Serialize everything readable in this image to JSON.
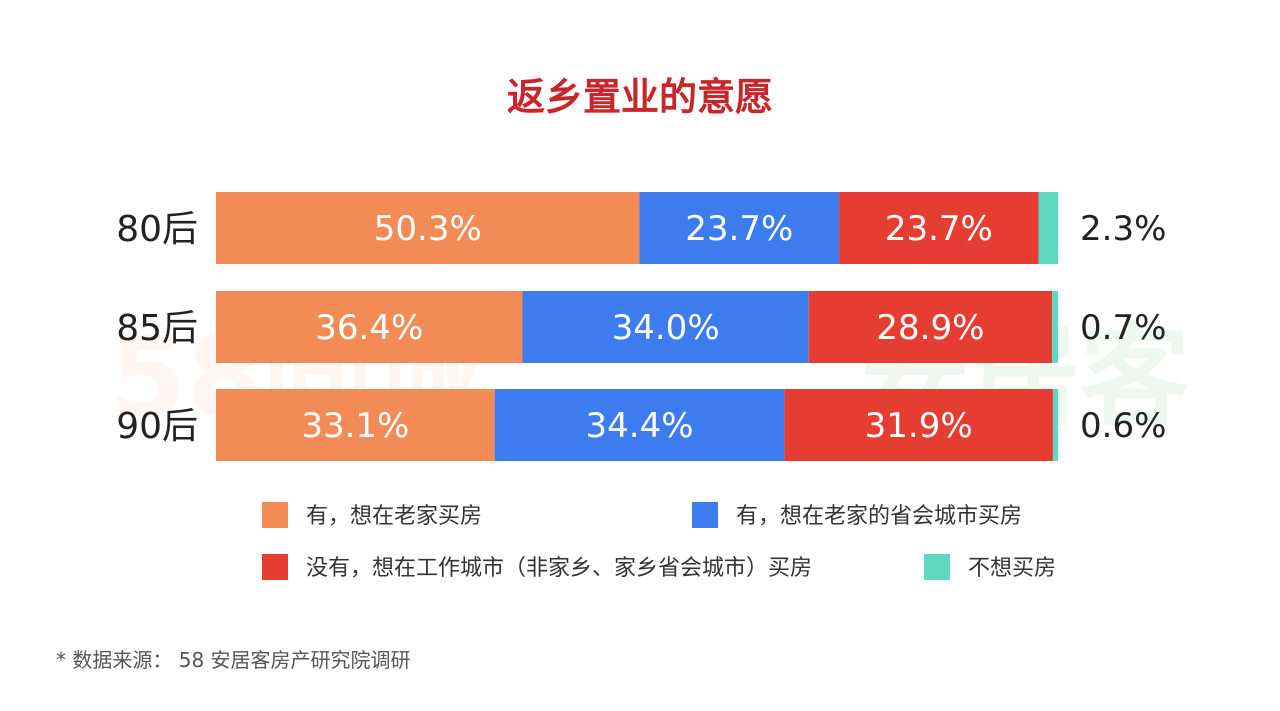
{
  "chart_data": {
    "type": "bar",
    "orientation": "horizontal",
    "stacked": true,
    "normalized": true,
    "title": "返乡置业的意愿",
    "categories": [
      "80后",
      "85后",
      "90后"
    ],
    "series": [
      {
        "name": "有，想在老家买房",
        "color": "#f28b55",
        "values": [
          50.3,
          36.4,
          33.1
        ],
        "labels": [
          "50.3%",
          "36.4%",
          "33.1%"
        ]
      },
      {
        "name": "有，想在老家的省会城市买房",
        "color": "#3d7cef",
        "values": [
          23.7,
          34.0,
          34.4
        ],
        "labels": [
          "23.7%",
          "34.0%",
          "34.4%"
        ]
      },
      {
        "name": "没有，想在工作城市（非家乡、家乡省会城市）买房",
        "color": "#e53d32",
        "values": [
          23.7,
          28.9,
          31.9
        ],
        "labels": [
          "23.7%",
          "28.9%",
          "31.9%"
        ]
      },
      {
        "name": "不想买房",
        "color": "#5fd8c2",
        "values": [
          2.3,
          0.7,
          0.6
        ],
        "labels": [
          "2.3%",
          "0.7%",
          "0.6%"
        ],
        "label_outside": true
      }
    ],
    "legend_position": "bottom",
    "grid": false,
    "xlim": [
      0,
      100
    ]
  },
  "watermark": {
    "left_text": "58同城",
    "right_text": "安居客",
    "left_color": "#f28b55",
    "right_color": "#22aa44"
  },
  "source_note": "* 数据来源： 58 安居客房产研究院调研"
}
